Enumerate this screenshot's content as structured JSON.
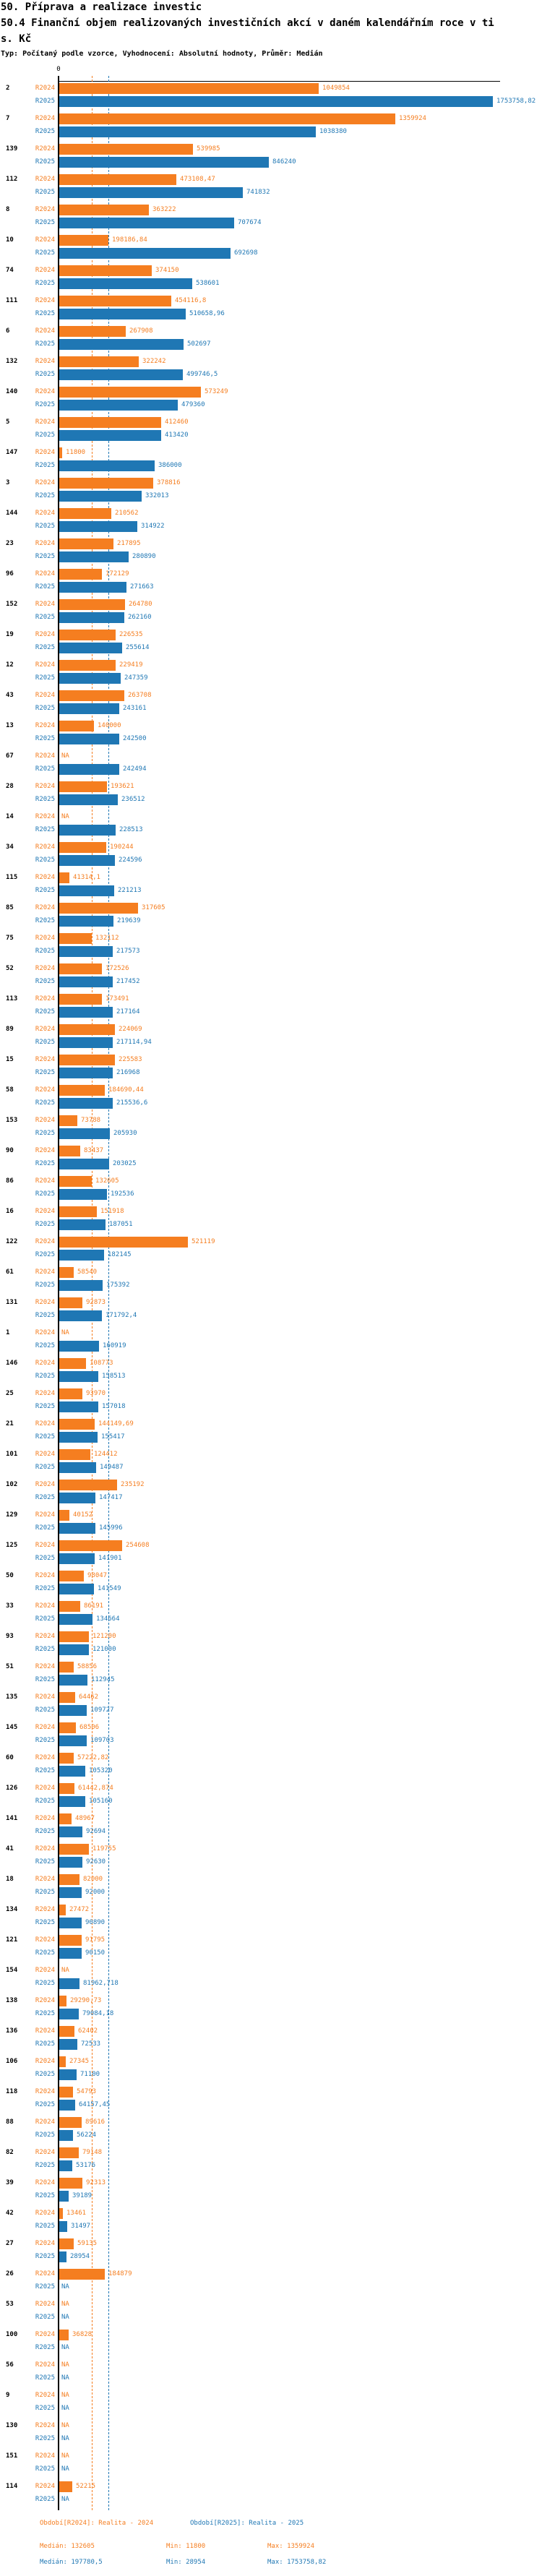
{
  "title": "50. Příprava a realizace investic",
  "subtitle_line1": "50.4 Finanční objem realizovaných investičních akcí v daném kalendářním roce v ti",
  "subtitle_line2": "s. Kč",
  "meta": "Typ: Počítaný podle vzorce, Vyhodnocení: Absolutní hodnoty, Průměr: Medián",
  "axis": {
    "zero_label": "0"
  },
  "colors": {
    "r2024": "#F57E20",
    "r2025": "#1F77B4",
    "axis": "#000000",
    "background": "#ffffff"
  },
  "legend": {
    "r2024": "Období[R2024]: Realita - 2024",
    "r2025": "Období[R2025]: Realita - 2025"
  },
  "stats": {
    "r2024": {
      "median": "Medián: 132605",
      "min": "Min: 11800",
      "max": "Max: 1359924"
    },
    "r2025": {
      "median": "Medián: 197780,5",
      "min": "Min: 28954",
      "max": "Max: 1753758,82"
    }
  },
  "chart_data": {
    "type": "bar",
    "orientation": "horizontal",
    "unit": "tis. Kč",
    "title": "50.4 Finanční objem realizovaných investičních akcí v daném kalendářním roce v tis. Kč",
    "xlim": [
      0,
      1753758.82
    ],
    "grid": false,
    "legend_position": "bottom",
    "medians": {
      "R2024": 132605,
      "R2025": 197780.5
    },
    "na_text": "NA",
    "categories": [
      "2",
      "7",
      "139",
      "112",
      "8",
      "10",
      "74",
      "111",
      "6",
      "132",
      "140",
      "5",
      "147",
      "3",
      "144",
      "23",
      "96",
      "152",
      "19",
      "12",
      "43",
      "13",
      "67",
      "28",
      "14",
      "34",
      "115",
      "85",
      "75",
      "52",
      "113",
      "89",
      "15",
      "58",
      "153",
      "90",
      "86",
      "16",
      "122",
      "61",
      "131",
      "1",
      "146",
      "25",
      "21",
      "101",
      "102",
      "129",
      "125",
      "50",
      "33",
      "93",
      "51",
      "135",
      "145",
      "60",
      "126",
      "141",
      "41",
      "18",
      "134",
      "121",
      "154",
      "138",
      "136",
      "106",
      "118",
      "88",
      "82",
      "39",
      "42",
      "27",
      "26",
      "53",
      "100",
      "56",
      "9",
      "130",
      "151",
      "114"
    ],
    "series": [
      {
        "name": "R2024",
        "color": "#F57E20",
        "values_display": [
          "1049854",
          "1359924",
          "539985",
          "473108,47",
          "363222",
          "198186,84",
          "374150",
          "454116,8",
          "267908",
          "322242",
          "573249",
          "412460",
          "11800",
          "378816",
          "210562",
          "217895",
          "172129",
          "264780",
          "226535",
          "229419",
          "263708",
          "140000",
          "NA",
          "193621",
          "NA",
          "190244",
          "41314,1",
          "317605",
          "132112",
          "172526",
          "173491",
          "224069",
          "225583",
          "184690,44",
          "73788",
          "83437",
          "132605",
          "151918",
          "521119",
          "58540",
          "92873",
          "NA",
          "108773",
          "93970",
          "144149,69",
          "124412",
          "235192",
          "40152",
          "254608",
          "98047",
          "86191",
          "121200",
          "58856",
          "64462",
          "68506",
          "57222,82",
          "61442,874",
          "48967",
          "119755",
          "82000",
          "27472",
          "91795",
          "NA",
          "29290,73",
          "62402",
          "27345",
          "54793",
          "89616",
          "79148",
          "92313",
          "13461",
          "59135",
          "184879",
          "NA",
          "36828",
          "NA",
          "NA",
          "NA",
          "NA",
          "52215"
        ]
      },
      {
        "name": "R2025",
        "color": "#1F77B4",
        "values_display": [
          "1753758,82",
          "1038380",
          "846240",
          "741832",
          "707674",
          "692698",
          "538601",
          "510658,96",
          "502697",
          "499746,5",
          "479360",
          "413420",
          "386000",
          "332013",
          "314922",
          "280890",
          "271663",
          "262160",
          "255614",
          "247359",
          "243161",
          "242500",
          "242494",
          "236512",
          "228513",
          "224596",
          "221213",
          "219639",
          "217573",
          "217452",
          "217164",
          "217114,94",
          "216968",
          "215536,6",
          "205930",
          "203025",
          "192536",
          "187051",
          "182145",
          "175392",
          "171792,4",
          "160919",
          "158513",
          "157018",
          "155417",
          "149487",
          "147417",
          "145996",
          "141901",
          "141549",
          "134664",
          "121000",
          "112945",
          "109727",
          "109703",
          "105320",
          "105160",
          "92694",
          "92630",
          "92000",
          "90890",
          "90150",
          "81962,718",
          "79084,18",
          "72533",
          "71100",
          "64157,45",
          "56224",
          "53176",
          "39189",
          "31497",
          "28954",
          "NA",
          "NA",
          "NA",
          "NA",
          "NA",
          "NA",
          "NA",
          "NA"
        ]
      }
    ]
  }
}
